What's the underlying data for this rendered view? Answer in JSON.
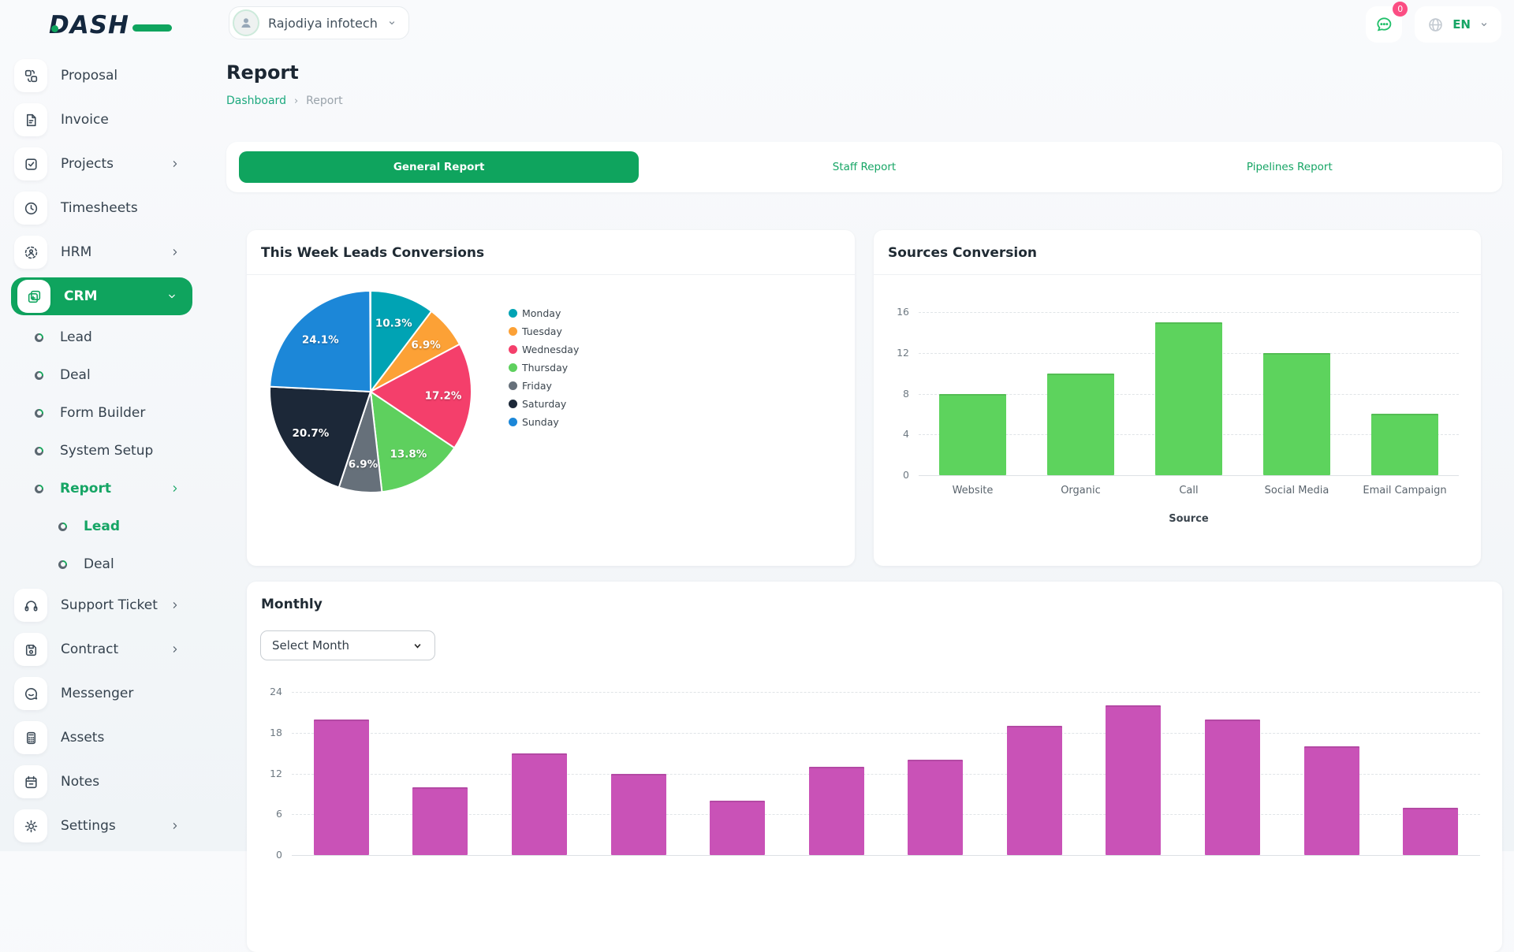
{
  "app": {
    "logo": "DASH"
  },
  "topbar": {
    "workspace": {
      "name": "Rajodiya infotech"
    },
    "messages": {
      "badge": "0"
    },
    "language": {
      "code": "EN"
    }
  },
  "sidebar": {
    "items": [
      {
        "label": "Proposal",
        "icon": "proposal",
        "level": 1
      },
      {
        "label": "Invoice",
        "icon": "invoice",
        "level": 1
      },
      {
        "label": "Projects",
        "icon": "projects",
        "level": 1,
        "chevron": "right"
      },
      {
        "label": "Timesheets",
        "icon": "timesheets",
        "level": 1
      },
      {
        "label": "HRM",
        "icon": "hrm",
        "level": 1,
        "chevron": "right"
      },
      {
        "label": "CRM",
        "icon": "crm",
        "level": 1,
        "chevron": "down",
        "active": true
      },
      {
        "label": "Lead",
        "level": 2
      },
      {
        "label": "Deal",
        "level": 2
      },
      {
        "label": "Form Builder",
        "level": 2
      },
      {
        "label": "System Setup",
        "level": 2
      },
      {
        "label": "Report",
        "level": 2,
        "chevron": "right",
        "active": true
      },
      {
        "label": "Lead",
        "level": 3,
        "active": true
      },
      {
        "label": "Deal",
        "level": 3
      },
      {
        "label": "Support Ticket",
        "icon": "support",
        "level": 1,
        "chevron": "right"
      },
      {
        "label": "Contract",
        "icon": "contract",
        "level": 1,
        "chevron": "right"
      },
      {
        "label": "Messenger",
        "icon": "messenger",
        "level": 1
      },
      {
        "label": "Assets",
        "icon": "assets",
        "level": 1
      },
      {
        "label": "Notes",
        "icon": "notes",
        "level": 1
      },
      {
        "label": "Settings",
        "icon": "settings",
        "level": 1,
        "chevron": "right"
      }
    ]
  },
  "page": {
    "title": "Report",
    "breadcrumb": {
      "parent": "Dashboard",
      "separator": "›",
      "current": "Report"
    }
  },
  "tabs": [
    {
      "label": "General Report",
      "active": true
    },
    {
      "label": "Staff Report",
      "active": false
    },
    {
      "label": "Pipelines Report",
      "active": false
    }
  ],
  "cards": {
    "pie_title": "This Week Leads Conversions",
    "sources_title": "Sources Conversion",
    "monthly_title": "Monthly",
    "month_select_placeholder": "Select Month"
  },
  "colors": {
    "accent_green": "#0FA45E",
    "link_green": "#1CA97E",
    "badge_pink": "#FB4D83",
    "sources_bar": "#5DD35D",
    "monthly_bar": "#C952B7"
  },
  "chart_data": [
    {
      "type": "pie",
      "title": "This Week Leads Conversions",
      "labels": [
        "Monday",
        "Tuesday",
        "Wednesday",
        "Thursday",
        "Friday",
        "Saturday",
        "Sunday"
      ],
      "values": [
        10.3,
        6.9,
        17.2,
        13.8,
        6.9,
        20.7,
        24.1
      ],
      "unit": "%",
      "colors": [
        "#00A3B4",
        "#FCA136",
        "#F43F6B",
        "#5ED05E",
        "#66707A",
        "#1C2838",
        "#1C87D8"
      ],
      "legend_position": "right",
      "labels_inside": true
    },
    {
      "type": "bar",
      "title": "Sources Conversion",
      "categories": [
        "Website",
        "Organic",
        "Call",
        "Social Media",
        "Email Campaign"
      ],
      "values": [
        8,
        10,
        15,
        12,
        6
      ],
      "xlabel": "Source",
      "ylabel": "",
      "yticks": [
        0,
        4,
        8,
        12,
        16
      ],
      "ylim": [
        0,
        16
      ],
      "grid": "dashed horizontal",
      "bar_color": "#5DD35D"
    },
    {
      "type": "bar",
      "title": "Monthly",
      "values": [
        20,
        10,
        15,
        12,
        8,
        13,
        14,
        19,
        22,
        20,
        16,
        7
      ],
      "yticks": [
        0,
        6,
        12,
        18,
        24
      ],
      "ylim": [
        0,
        24
      ],
      "grid": "dashed horizontal",
      "bar_color": "#C952B7"
    }
  ]
}
